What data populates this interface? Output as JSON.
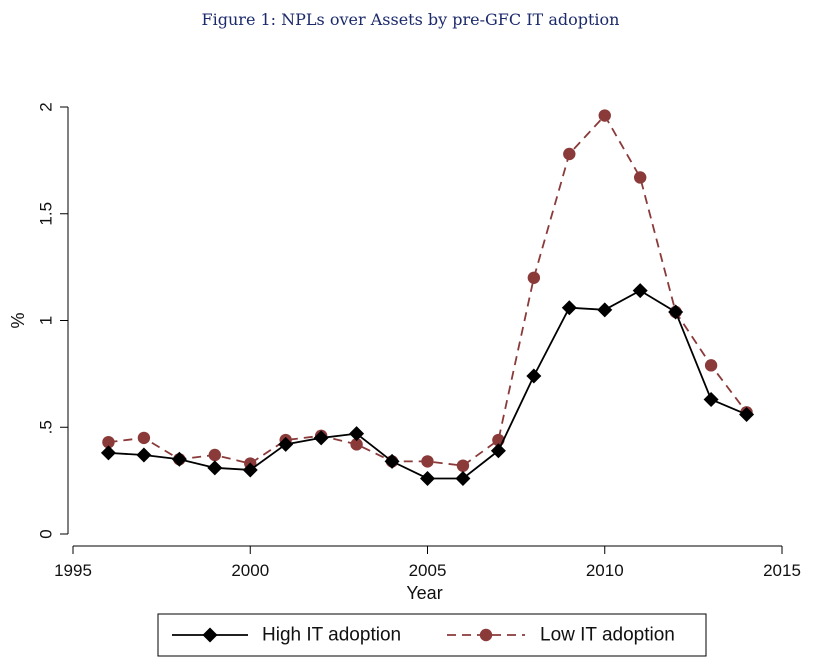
{
  "figure": {
    "title": "Figure 1: NPLs over Assets by pre-GFC IT adoption"
  },
  "chart_data": {
    "type": "line",
    "title": "Figure 1: NPLs over Assets by pre-GFC IT adoption",
    "xlabel": "Year",
    "ylabel": "%",
    "xlim": [
      1995,
      2015
    ],
    "ylim": [
      0,
      2
    ],
    "x_ticks": [
      1995,
      2000,
      2005,
      2010,
      2015
    ],
    "x_tick_labels": [
      "1995",
      "2000",
      "2005",
      "2010",
      "2015"
    ],
    "y_ticks": [
      0,
      0.5,
      1,
      1.5,
      2
    ],
    "y_tick_labels": [
      "0",
      ".5",
      "1",
      "1.5",
      "2"
    ],
    "grid": false,
    "legend_position": "bottom",
    "x": [
      1996,
      1997,
      1998,
      1999,
      2000,
      2001,
      2002,
      2003,
      2004,
      2005,
      2006,
      2007,
      2008,
      2009,
      2010,
      2011,
      2012,
      2013,
      2014
    ],
    "series": [
      {
        "name": "High IT adoption",
        "color": "#000000",
        "line_style": "solid",
        "marker": "diamond",
        "values": [
          0.38,
          0.37,
          0.35,
          0.31,
          0.3,
          0.42,
          0.45,
          0.47,
          0.34,
          0.26,
          0.26,
          0.39,
          0.74,
          1.06,
          1.05,
          1.14,
          1.04,
          0.63,
          0.56
        ]
      },
      {
        "name": "Low IT adoption",
        "color": "#8b3a3a",
        "line_style": "dashed",
        "marker": "circle",
        "values": [
          0.43,
          0.45,
          0.35,
          0.37,
          0.33,
          0.44,
          0.46,
          0.42,
          0.34,
          0.34,
          0.32,
          0.44,
          1.2,
          1.78,
          1.96,
          1.67,
          1.04,
          0.79,
          0.57
        ]
      }
    ]
  }
}
